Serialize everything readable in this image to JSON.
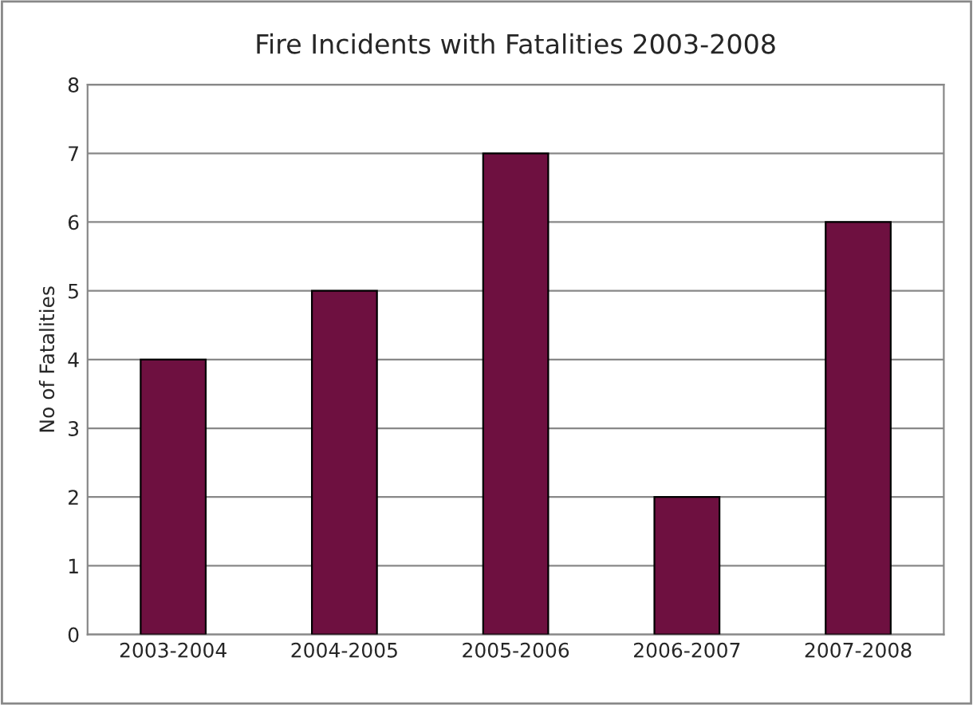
{
  "chart_data": {
    "type": "bar",
    "title": "Fire Incidents with Fatalities 2003-2008",
    "ylabel": "No of Fatalities",
    "categories": [
      "2003-2004",
      "2004-2005",
      "2005-2006",
      "2006-2007",
      "2007-2008"
    ],
    "values": [
      4,
      5,
      7,
      2,
      6
    ],
    "color": "#6e1040",
    "ylim": [
      0,
      8
    ],
    "yticks": [
      0,
      1,
      2,
      3,
      4,
      5,
      6,
      7,
      8
    ],
    "grid": "y",
    "legend": false
  }
}
